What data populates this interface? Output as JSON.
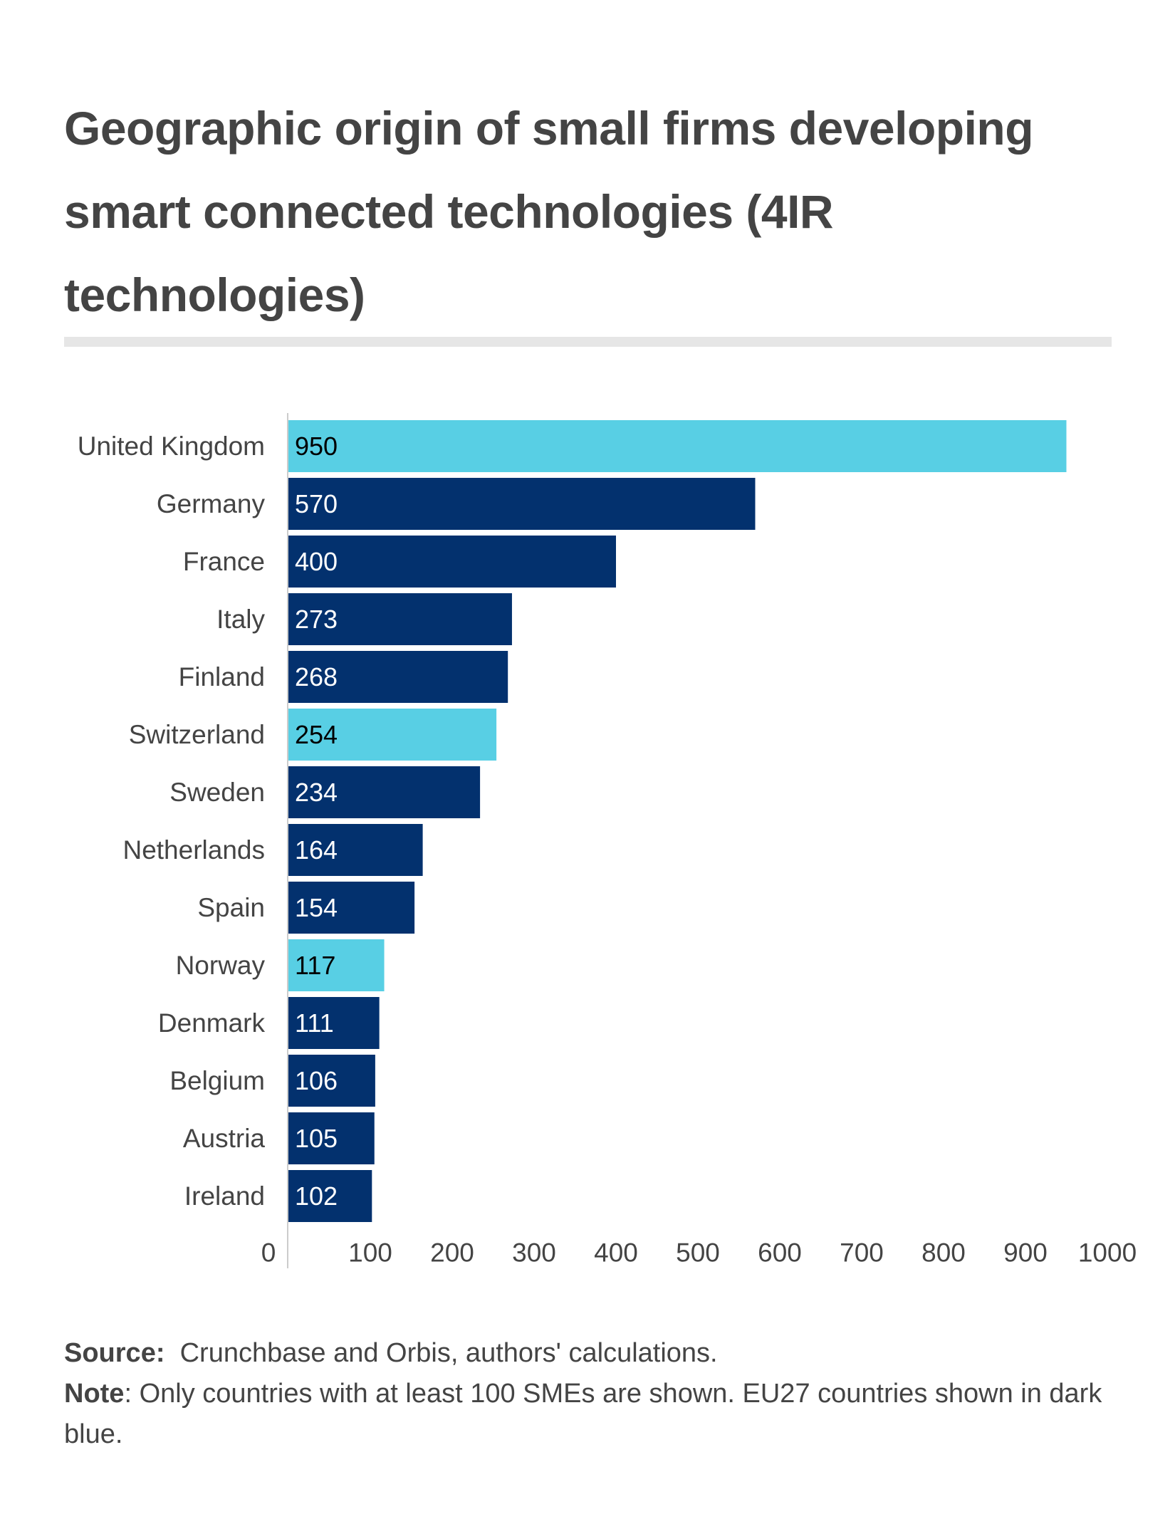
{
  "title": "Geographic origin of small firms developing smart connected technologies (4IR technologies)",
  "source_label": "Source:",
  "source_text": "Crunchbase and Orbis, authors' calculations.",
  "note_label": "Note",
  "note_text": ": Only countries with at least 100 SMEs are shown. EU27 countries shown in dark blue.",
  "colors": {
    "eu27": "#03316e",
    "non_eu": "#58cfe4",
    "axis": "#cccccc",
    "text": "#444444"
  },
  "chart_data": {
    "type": "bar",
    "orientation": "horizontal",
    "categories": [
      "United Kingdom",
      "Germany",
      "France",
      "Italy",
      "Finland",
      "Switzerland",
      "Sweden",
      "Netherlands",
      "Spain",
      "Norway",
      "Denmark",
      "Belgium",
      "Austria",
      "Ireland"
    ],
    "values": [
      950,
      570,
      400,
      273,
      268,
      254,
      234,
      164,
      154,
      117,
      111,
      106,
      105,
      102
    ],
    "eu27": [
      false,
      true,
      true,
      true,
      true,
      false,
      true,
      true,
      true,
      false,
      true,
      true,
      true,
      true
    ],
    "xlim": [
      0,
      1000
    ],
    "xticks": [
      0,
      100,
      200,
      300,
      400,
      500,
      600,
      700,
      800,
      900,
      1000
    ],
    "grid": false,
    "legend": "none"
  }
}
